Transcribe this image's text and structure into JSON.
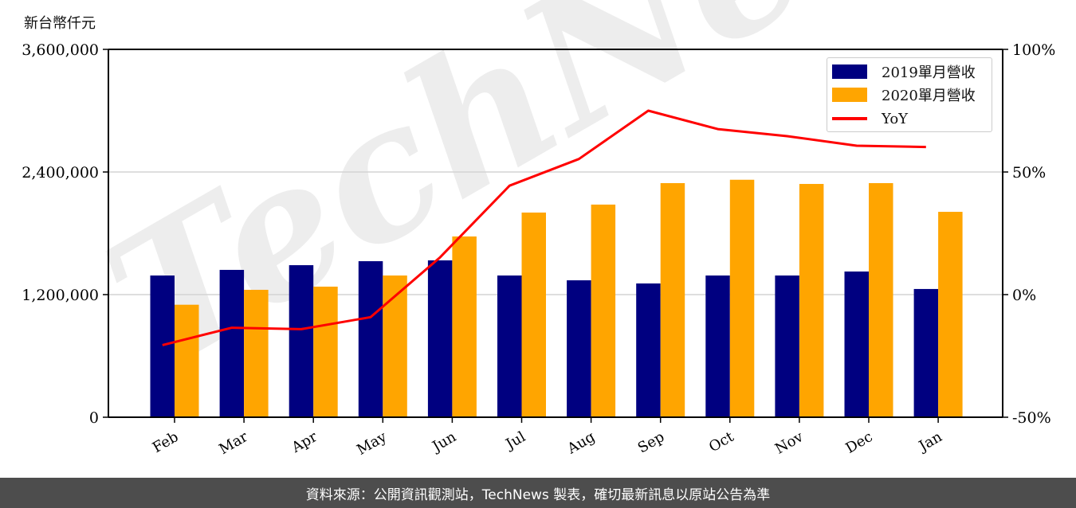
{
  "unit_label": "新台幣仟元",
  "footer": "資料來源：公開資訊觀測站，TechNews 製表，確切最新訊息以原站公告為準",
  "watermark": "TechNews",
  "colors": {
    "series_2019": "#000080",
    "series_2020": "#ffa500",
    "yoy": "#ff0000",
    "grid": "#d3d3d3",
    "footer_bg": "#4d4d4d"
  },
  "legend": {
    "items": [
      {
        "label": "2019單月營收",
        "kind": "bar",
        "color": "#000080"
      },
      {
        "label": "2020單月營收",
        "kind": "bar",
        "color": "#ffa500"
      },
      {
        "label": "YoY",
        "kind": "line",
        "color": "#ff0000"
      }
    ]
  },
  "chart_data": {
    "type": "bar",
    "title": "",
    "xlabel": "",
    "ylabel": "新台幣仟元",
    "y2label": "",
    "categories": [
      "Feb",
      "Mar",
      "Apr",
      "May",
      "Jun",
      "Jul",
      "Aug",
      "Sep",
      "Oct",
      "Nov",
      "Dec",
      "Jan"
    ],
    "series": [
      {
        "name": "2019單月營收",
        "type": "bar",
        "axis": "left",
        "color": "#000080",
        "values": [
          1387000,
          1442000,
          1488000,
          1527000,
          1535000,
          1387000,
          1340000,
          1309000,
          1387000,
          1387000,
          1426000,
          1255000
        ]
      },
      {
        "name": "2020單月營收",
        "type": "bar",
        "axis": "left",
        "color": "#ffa500",
        "values": [
          1101000,
          1247000,
          1278000,
          1387000,
          1769000,
          2003000,
          2081000,
          2291000,
          2324000,
          2283000,
          2291000,
          2010000
        ]
      },
      {
        "name": "YoY",
        "type": "line",
        "axis": "right",
        "color": "#ff0000",
        "unit": "%",
        "values": [
          -20.6,
          -13.5,
          -14.1,
          -9.2,
          15.2,
          44.4,
          55.3,
          75.0,
          67.5,
          64.6,
          60.7,
          60.2
        ]
      }
    ],
    "ylim": [
      0,
      3600000
    ],
    "y_ticks": [
      0,
      1200000,
      2400000,
      3600000
    ],
    "y_tick_labels": [
      "0",
      "1,200,000",
      "2,400,000",
      "3,600,000"
    ],
    "y2lim": [
      -50,
      100
    ],
    "y2_ticks": [
      -50,
      0,
      50,
      100
    ],
    "y2_tick_labels": [
      "-50%",
      "0%",
      "50%",
      "100%"
    ],
    "grid": "horizontal at 1,200,000 and 2,400,000",
    "legend_position": "upper right",
    "x_tick_rotation": 30
  }
}
